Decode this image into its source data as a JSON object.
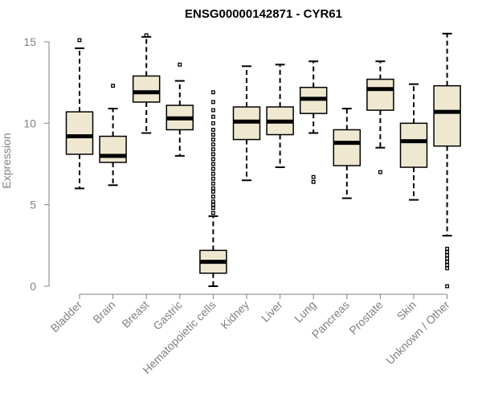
{
  "chart_data": {
    "type": "boxplot",
    "title": "ENSG00000142871 - CYR61",
    "ylabel": "Expression",
    "xlabel": "",
    "ylim": [
      0,
      15.5
    ],
    "yticks": [
      0,
      5,
      10,
      15
    ],
    "grid": false,
    "colors": {
      "box_fill": "#efe8d0",
      "stroke": "#000000",
      "axis": "#808080",
      "text": "#808080"
    },
    "categories": [
      "Bladder",
      "Brain",
      "Breast",
      "Gastric",
      "Hematopoietic cells",
      "Kidney",
      "Liver",
      "Lung",
      "Pancreas",
      "Prostate",
      "Skin",
      "Unknown / Other"
    ],
    "boxes": [
      {
        "whisker_low": 6.0,
        "q1": 8.1,
        "median": 9.2,
        "q3": 10.7,
        "whisker_high": 14.6,
        "outliers": [
          15.1
        ]
      },
      {
        "whisker_low": 6.2,
        "q1": 7.6,
        "median": 8.0,
        "q3": 9.2,
        "whisker_high": 10.9,
        "outliers": [
          12.3
        ]
      },
      {
        "whisker_low": 9.4,
        "q1": 11.3,
        "median": 11.9,
        "q3": 12.9,
        "whisker_high": 15.3,
        "outliers": [
          15.4
        ]
      },
      {
        "whisker_low": 8.0,
        "q1": 9.6,
        "median": 10.3,
        "q3": 11.1,
        "whisker_high": 12.6,
        "outliers": [
          13.6
        ]
      },
      {
        "whisker_low": 0.0,
        "q1": 0.8,
        "median": 1.5,
        "q3": 2.2,
        "whisker_high": 4.3,
        "outliers": [
          4.5,
          4.8,
          5.0,
          5.2,
          5.5,
          5.8,
          6.0,
          6.3,
          6.6,
          6.9,
          7.2,
          7.5,
          7.8,
          8.1,
          8.4,
          8.7,
          9.0,
          9.3,
          9.6,
          10.0,
          10.4,
          10.8,
          11.3,
          11.9
        ]
      },
      {
        "whisker_low": 6.5,
        "q1": 9.0,
        "median": 10.1,
        "q3": 11.0,
        "whisker_high": 13.5,
        "outliers": []
      },
      {
        "whisker_low": 7.3,
        "q1": 9.3,
        "median": 10.1,
        "q3": 11.0,
        "whisker_high": 13.6,
        "outliers": []
      },
      {
        "whisker_low": 9.4,
        "q1": 10.6,
        "median": 11.5,
        "q3": 12.2,
        "whisker_high": 13.8,
        "outliers": [
          6.4,
          6.7
        ]
      },
      {
        "whisker_low": 5.4,
        "q1": 7.4,
        "median": 8.8,
        "q3": 9.6,
        "whisker_high": 10.9,
        "outliers": []
      },
      {
        "whisker_low": 8.5,
        "q1": 10.8,
        "median": 12.1,
        "q3": 12.7,
        "whisker_high": 13.8,
        "outliers": [
          7.0
        ]
      },
      {
        "whisker_low": 5.3,
        "q1": 7.3,
        "median": 8.9,
        "q3": 10.0,
        "whisker_high": 12.4,
        "outliers": []
      },
      {
        "whisker_low": 3.1,
        "q1": 8.6,
        "median": 10.7,
        "q3": 12.3,
        "whisker_high": 15.5,
        "outliers": [
          0.0,
          1.1,
          1.3,
          1.5,
          1.7,
          1.9,
          2.1,
          2.3
        ]
      }
    ]
  }
}
